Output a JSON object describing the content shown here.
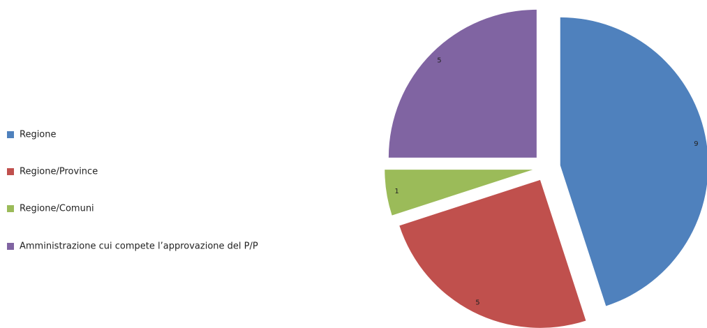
{
  "chart_data": {
    "type": "pie",
    "categories": [
      "Regione",
      "Regione/Province",
      "Regione/Comuni",
      "Amministrazione cui compete l’approvazione del P/P"
    ],
    "values": [
      9,
      5,
      1,
      5
    ],
    "colors": [
      "#4f81bd",
      "#c0504d",
      "#9bbb59",
      "#8064a2"
    ],
    "legend": "left"
  }
}
